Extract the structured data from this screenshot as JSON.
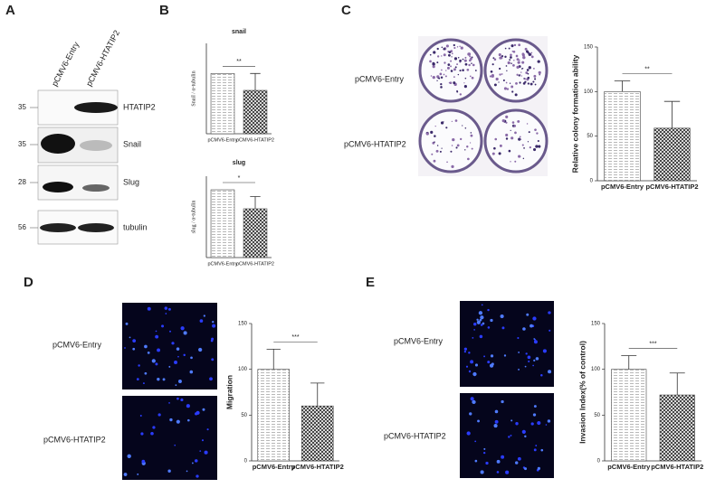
{
  "panels": [
    "A",
    "B",
    "C",
    "D",
    "E"
  ],
  "blot": {
    "lanes": [
      "pCMV6-Entry",
      "pCMV6-HTATIP2"
    ],
    "rows": [
      {
        "marker": 35,
        "label": "HTATIP2"
      },
      {
        "marker": 35,
        "label": "Snail"
      },
      {
        "marker": 28,
        "label": "Slug"
      },
      {
        "marker": 56,
        "label": "tubulin"
      }
    ]
  },
  "colony_labels": [
    "pCMV6-Entry",
    "pCMV6-HTATIP2"
  ],
  "migration_labels": [
    "pCMV6-Entry",
    "pCMV6-HTATIP2"
  ],
  "invasion_labels": [
    "pCMV6-Entry",
    "pCMV6-HTATIP2"
  ],
  "chart_data": [
    {
      "type": "bar",
      "title": "snail",
      "y_label": "Snail / α-tubulin",
      "categories": [
        "pCMV6-Entry",
        "pCMV6-HTATIP2"
      ],
      "values": [
        1.0,
        0.72
      ],
      "errors": [
        0,
        0.28
      ],
      "ylim": [
        0,
        1.5
      ],
      "significance": "**"
    },
    {
      "type": "bar",
      "title": "slug",
      "y_label": "slug / α-tubulin",
      "categories": [
        "pCMV6-Entry",
        "pCMV6-HTATIP2"
      ],
      "values": [
        1.0,
        0.72
      ],
      "errors": [
        0,
        0.18
      ],
      "ylim": [
        0,
        1.2
      ],
      "significance": "*"
    },
    {
      "type": "bar",
      "y_label": "Relative colony formation ability",
      "categories": [
        "pCMV6-Entry",
        "pCMV6-HTATIP2"
      ],
      "values": [
        100,
        59
      ],
      "errors": [
        12,
        30
      ],
      "ylim": [
        0,
        150
      ],
      "yticks": [
        0,
        50,
        100,
        150
      ],
      "significance": "**"
    },
    {
      "type": "bar",
      "y_label": "Migration",
      "categories": [
        "pCMV6-Entry",
        "pCMV6-HTATIP2"
      ],
      "values": [
        100,
        60
      ],
      "errors": [
        22,
        25
      ],
      "ylim": [
        0,
        150
      ],
      "yticks": [
        0,
        50,
        100,
        150
      ],
      "significance": "***"
    },
    {
      "type": "bar",
      "y_label": "Invasion Index(% of control)",
      "categories": [
        "pCMV6-Entry",
        "pCMV6-HTATIP2"
      ],
      "values": [
        100,
        72
      ],
      "errors": [
        15,
        24
      ],
      "ylim": [
        0,
        150
      ],
      "yticks": [
        0,
        50,
        100,
        150
      ],
      "significance": "***"
    }
  ]
}
